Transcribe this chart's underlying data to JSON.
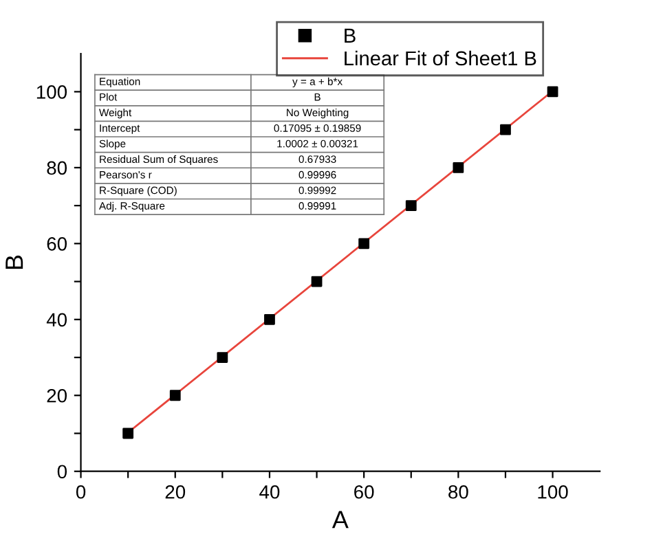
{
  "chart_data": {
    "type": "scatter",
    "xlabel": "A",
    "ylabel": "B",
    "xlim": [
      0,
      110
    ],
    "ylim": [
      0,
      110
    ],
    "xticks": [
      0,
      {
        "value": 10,
        "label": null
      },
      20,
      {
        "value": 30,
        "label": null
      },
      40,
      {
        "value": 50,
        "label": null
      },
      60,
      {
        "value": 70,
        "label": null
      },
      80,
      {
        "value": 90,
        "label": null
      },
      100
    ],
    "yticks": [
      0,
      {
        "value": 10,
        "label": null
      },
      20,
      {
        "value": 30,
        "label": null
      },
      40,
      {
        "value": 50,
        "label": null
      },
      60,
      {
        "value": 70,
        "label": null
      },
      80,
      {
        "value": 90,
        "label": null
      },
      100
    ],
    "x": [
      10,
      20,
      30,
      40,
      50,
      60,
      70,
      80,
      90,
      100
    ],
    "series": [
      {
        "name": "B",
        "color": "#000000",
        "marker": "square",
        "values": [
          10,
          20,
          30,
          40,
          50,
          60,
          70,
          80,
          90,
          100
        ]
      },
      {
        "name": "Linear Fit of Sheet1 B",
        "type": "line",
        "color": "#e8453c",
        "marker": "none",
        "line_style": "solid",
        "x": [
          10,
          100
        ],
        "values": [
          10.2,
          100.2
        ]
      }
    ],
    "legend": "top right",
    "grid": false,
    "annotations": [
      "Equation",
      "y = a + b*x",
      "Plot",
      "B",
      "Weight",
      "No Weighting",
      "Intercept",
      "0.17095 ± 0.19859",
      "Slope",
      "1.0002 ± 0.00321",
      "Residual Sum of Squares",
      "0.67933",
      "Pearson's r",
      "0.99996",
      "R-Square (COD)",
      "0.99992",
      "Adj. R-Square",
      "0.99991"
    ]
  }
}
